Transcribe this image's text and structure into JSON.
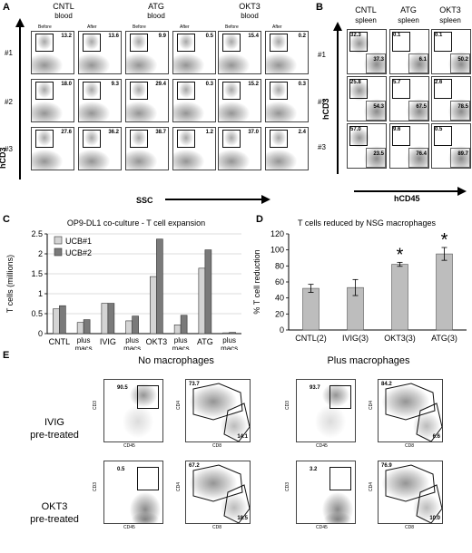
{
  "panelA": {
    "label": "A",
    "groups": [
      {
        "title": "CNTL",
        "sub": "blood"
      },
      {
        "title": "ATG",
        "sub": "blood"
      },
      {
        "title": "OKT3",
        "sub": "blood"
      }
    ],
    "before": "Before",
    "after": "After",
    "rows": [
      "#1",
      "#2",
      "#3"
    ],
    "yaxis": "hCD3",
    "xaxis": "SSC",
    "values": [
      [
        "13.2",
        "13.6",
        "9.9",
        "0.5",
        "15.4",
        "0.2"
      ],
      [
        "18.0",
        "9.3",
        "29.4",
        "0.3",
        "15.2",
        "0.3"
      ],
      [
        "27.6",
        "36.2",
        "38.7",
        "1.2",
        "37.0",
        "2.4"
      ]
    ]
  },
  "panelB": {
    "label": "B",
    "groups": [
      {
        "title": "CNTL",
        "sub": "spleen"
      },
      {
        "title": "ATG",
        "sub": "spleen"
      },
      {
        "title": "OKT3",
        "sub": "spleen"
      }
    ],
    "rows": [
      "#1",
      "#2",
      "#3"
    ],
    "yaxis": "hCD3",
    "xaxis": "hCD45",
    "values": [
      [
        [
          "32.3",
          "37.3"
        ],
        [
          "0.1",
          "6.1"
        ],
        [
          "0.1",
          "50.2"
        ]
      ],
      [
        [
          "25.8",
          "54.3"
        ],
        [
          "5.7",
          "67.5"
        ],
        [
          "2.6",
          "78.5"
        ]
      ],
      [
        [
          "57.0",
          "23.5"
        ],
        [
          "9.6",
          "76.4"
        ],
        [
          "0.5",
          "89.7"
        ]
      ]
    ]
  },
  "panelC": {
    "label": "C",
    "chart_data": {
      "type": "bar",
      "title": "OP9-DL1 co-culture - T cell expansion",
      "ylabel": "T cells (millions)",
      "xlabel": "",
      "ylim": [
        0,
        2.5
      ],
      "yticks": [
        "0",
        "0.5",
        "1",
        "1.5",
        "2",
        "2.5"
      ],
      "categories": [
        "CNTL",
        "plus macs",
        "IVIG",
        "plus macs",
        "OKT3",
        "plus macs",
        "ATG",
        "plus macs"
      ],
      "series": [
        {
          "name": "UCB#1",
          "color": "#d4d4d4",
          "values": [
            0.62,
            0.28,
            0.76,
            0.32,
            1.43,
            0.22,
            1.64,
            0.02
          ]
        },
        {
          "name": "UCB#2",
          "color": "#7a7a7a",
          "values": [
            0.7,
            0.35,
            0.76,
            0.44,
            2.37,
            0.46,
            2.1,
            0.03
          ]
        }
      ],
      "legend": "top-left"
    }
  },
  "panelD": {
    "label": "D",
    "chart_data": {
      "type": "bar",
      "title": "T cells reduced by NSG macrophages",
      "ylabel": "% T cell reduction",
      "xlabel": "",
      "ylim": [
        0,
        120
      ],
      "yticks": [
        "0",
        "20",
        "40",
        "60",
        "80",
        "100",
        "120"
      ],
      "categories": [
        "CNTL(2)",
        "IVIG(3)",
        "OKT3(3)",
        "ATG(3)"
      ],
      "values": [
        52,
        53,
        82,
        95
      ],
      "errors": [
        5,
        10,
        2.5,
        8
      ],
      "significant": [
        "",
        "",
        "*",
        "*"
      ],
      "color": "#bdbdbd"
    }
  },
  "panelE": {
    "label": "E",
    "col_titles": [
      "No macrophages",
      "Plus macrophages"
    ],
    "row_labels": [
      {
        "line1": "IVIG",
        "line2": "pre-treated"
      },
      {
        "line1": "OKT3",
        "line2": "pre-treated"
      }
    ],
    "axes": {
      "cd3": "CD3",
      "cd45": "CD45",
      "cd4": "CD4",
      "cd8": "CD8"
    },
    "values": [
      {
        "no": {
          "cd3": "90.5",
          "cd4": "73.7",
          "cd8": "14.1"
        },
        "plus": {
          "cd3": "93.7",
          "cd4": "84.2",
          "cd8": "6.6"
        }
      },
      {
        "no": {
          "cd3": "0.5",
          "cd4": "67.2",
          "cd8": "18.5"
        },
        "plus": {
          "cd3": "3.2",
          "cd4": "76.9",
          "cd8": "10.0"
        }
      }
    ]
  }
}
